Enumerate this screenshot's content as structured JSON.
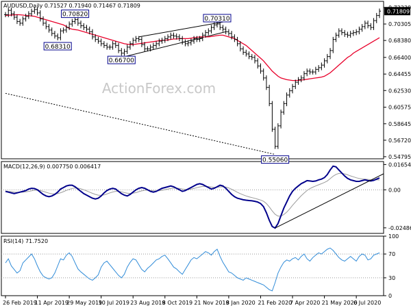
{
  "chart_data": [
    {
      "type": "candlestick",
      "symbol_header": "AUDUSD,Daily  0.71527 0.71940 0.71467 0.71809",
      "watermark": "ActionForex.com",
      "ylim": [
        0.5455,
        0.7295
      ],
      "y_ticks": [
        "0.72230",
        "0.70305",
        "0.68380",
        "0.66400",
        "0.64455",
        "0.62530",
        "0.60575",
        "0.58645",
        "0.56720",
        "0.54795"
      ],
      "last_price": "0.71809",
      "close_series": [
        0.714,
        0.719,
        0.715,
        0.711,
        0.706,
        0.704,
        0.709,
        0.712,
        0.715,
        0.718,
        0.72,
        0.716,
        0.709,
        0.704,
        0.7,
        0.696,
        0.692,
        0.689,
        0.687,
        0.695,
        0.696,
        0.699,
        0.703,
        0.706,
        0.7082,
        0.704,
        0.701,
        0.699,
        0.697,
        0.694,
        0.688,
        0.685,
        0.683,
        0.68,
        0.678,
        0.676,
        0.676,
        0.68,
        0.678,
        0.672,
        0.669,
        0.671,
        0.676,
        0.68,
        0.684,
        0.686,
        0.685,
        0.679,
        0.674,
        0.674,
        0.676,
        0.678,
        0.68,
        0.683,
        0.684,
        0.686,
        0.688,
        0.69,
        0.689,
        0.688,
        0.686,
        0.682,
        0.68,
        0.681,
        0.683,
        0.686,
        0.685,
        0.686,
        0.69,
        0.693,
        0.695,
        0.699,
        0.702,
        0.7031,
        0.699,
        0.697,
        0.694,
        0.692,
        0.688,
        0.685,
        0.68,
        0.674,
        0.67,
        0.668,
        0.665,
        0.664,
        0.66,
        0.654,
        0.648,
        0.64,
        0.629,
        0.61,
        0.58,
        0.56,
        0.584,
        0.6,
        0.61,
        0.62,
        0.625,
        0.63,
        0.635,
        0.638,
        0.64,
        0.645,
        0.648,
        0.647,
        0.647,
        0.65,
        0.652,
        0.655,
        0.66,
        0.665,
        0.672,
        0.685,
        0.69,
        0.695,
        0.693,
        0.691,
        0.69,
        0.692,
        0.693,
        0.694,
        0.697,
        0.7,
        0.704,
        0.701,
        0.699,
        0.707,
        0.713,
        0.7181
      ],
      "sma_series": [
        0.713,
        0.7133,
        0.7135,
        0.7137,
        0.714,
        0.7138,
        0.7135,
        0.713,
        0.7128,
        0.7125,
        0.712,
        0.711,
        0.71,
        0.709,
        0.708,
        0.707,
        0.706,
        0.705,
        0.704,
        0.703,
        0.702,
        0.7,
        0.698,
        0.697,
        0.6965,
        0.696,
        0.695,
        0.694,
        0.693,
        0.692,
        0.691,
        0.69,
        0.689,
        0.688,
        0.687,
        0.686,
        0.685,
        0.684,
        0.683,
        0.682,
        0.681,
        0.68,
        0.6795,
        0.679,
        0.679,
        0.6795,
        0.68,
        0.6805,
        0.681,
        0.6815,
        0.682,
        0.6825,
        0.683,
        0.6835,
        0.684,
        0.684,
        0.6845,
        0.685,
        0.6855,
        0.6855,
        0.686,
        0.686,
        0.686,
        0.686,
        0.6865,
        0.687,
        0.6875,
        0.688,
        0.688,
        0.688,
        0.688,
        0.6885,
        0.689,
        0.6895,
        0.69,
        0.69,
        0.689,
        0.688,
        0.687,
        0.686,
        0.684,
        0.682,
        0.68,
        0.678,
        0.675,
        0.672,
        0.669,
        0.666,
        0.663,
        0.66,
        0.656,
        0.652,
        0.648,
        0.645,
        0.642,
        0.64,
        0.639,
        0.638,
        0.6375,
        0.637,
        0.637,
        0.6372,
        0.6375,
        0.638,
        0.6385,
        0.639,
        0.6395,
        0.64,
        0.6405,
        0.641,
        0.642,
        0.644,
        0.646,
        0.649,
        0.652,
        0.655,
        0.658,
        0.661,
        0.664,
        0.666,
        0.669,
        0.671,
        0.673,
        0.675,
        0.677,
        0.679,
        0.681,
        0.683,
        0.685,
        0.687
      ],
      "price_labels": [
        {
          "text": "0.70820",
          "index": 24,
          "value": 0.7082,
          "side": "above"
        },
        {
          "text": "0.68310",
          "index": 18,
          "value": 0.6831,
          "side": "below"
        },
        {
          "text": "0.66700",
          "index": 40,
          "value": 0.667,
          "side": "below"
        },
        {
          "text": "0.70310",
          "index": 73,
          "value": 0.7031,
          "side": "above"
        },
        {
          "text": "0.55060",
          "index": 93,
          "value": 0.5506,
          "side": "below"
        }
      ],
      "trendlines": [
        {
          "from": [
            0,
            0.622
          ],
          "to": [
            93,
            0.5506
          ],
          "style": "dotted"
        },
        {
          "from": [
            46,
            0.688
          ],
          "to": [
            76,
            0.706
          ],
          "style": "solid"
        },
        {
          "from": [
            40,
            0.664
          ],
          "to": [
            76,
            0.694
          ],
          "style": "solid"
        }
      ]
    },
    {
      "type": "line",
      "label": "MACD(12,26,9) 0.007750 0.006417",
      "ylim": [
        -0.0285,
        0.0185
      ],
      "y_ticks": [
        "0.01654",
        "0.00",
        "-0.02486"
      ],
      "macd_series": [
        -0.001,
        -0.0015,
        -0.002,
        -0.0025,
        -0.002,
        -0.0015,
        -0.001,
        -0.0005,
        0.0005,
        0.001,
        0.0008,
        0.0,
        -0.0015,
        -0.003,
        -0.004,
        -0.0045,
        -0.004,
        -0.003,
        -0.0015,
        0.0005,
        0.0015,
        0.0025,
        0.003,
        0.003,
        0.002,
        0.0005,
        -0.001,
        -0.0025,
        -0.0035,
        -0.0045,
        -0.0055,
        -0.006,
        -0.0055,
        -0.004,
        -0.002,
        -0.0005,
        0.0005,
        0.001,
        0.0005,
        -0.001,
        -0.0025,
        -0.0035,
        -0.004,
        -0.003,
        -0.0015,
        0.0,
        0.001,
        0.0015,
        0.001,
        0.0,
        -0.001,
        -0.0015,
        -0.001,
        0.0,
        0.001,
        0.0015,
        0.002,
        0.0025,
        0.002,
        0.001,
        0.0,
        -0.001,
        -0.0005,
        0.0005,
        0.0015,
        0.0025,
        0.0035,
        0.004,
        0.0035,
        0.0025,
        0.0015,
        0.0005,
        0.001,
        0.002,
        0.003,
        0.0025,
        0.001,
        -0.001,
        -0.003,
        -0.0045,
        -0.0055,
        -0.006,
        -0.0065,
        -0.0068,
        -0.007,
        -0.0072,
        -0.0075,
        -0.008,
        -0.009,
        -0.011,
        -0.015,
        -0.02,
        -0.024,
        -0.025,
        -0.022,
        -0.017,
        -0.012,
        -0.008,
        -0.004,
        -0.001,
        0.001,
        0.0025,
        0.004,
        0.005,
        0.006,
        0.0058,
        0.0055,
        0.0058,
        0.0065,
        0.007,
        0.008,
        0.01,
        0.013,
        0.0155,
        0.015,
        0.013,
        0.011,
        0.009,
        0.0075,
        0.0065,
        0.006,
        0.0055,
        0.0055,
        0.006,
        0.0065,
        0.006,
        0.0058,
        0.0062,
        0.007,
        0.0078
      ],
      "signal_series": [
        -0.0008,
        -0.001,
        -0.0012,
        -0.0015,
        -0.0016,
        -0.0016,
        -0.0015,
        -0.0013,
        -0.001,
        -0.0006,
        -0.0003,
        -0.0002,
        -0.0005,
        -0.001,
        -0.0016,
        -0.0022,
        -0.0026,
        -0.0027,
        -0.0025,
        -0.0019,
        -0.0012,
        -0.0004,
        0.0003,
        0.0009,
        0.0012,
        0.0011,
        0.0007,
        0.0,
        -0.0007,
        -0.0015,
        -0.0023,
        -0.003,
        -0.0035,
        -0.0036,
        -0.0033,
        -0.0027,
        -0.002,
        -0.0014,
        -0.001,
        -0.001,
        -0.0013,
        -0.0018,
        -0.0022,
        -0.0024,
        -0.0022,
        -0.0018,
        -0.0012,
        -0.0007,
        -0.0003,
        -0.0002,
        -0.0004,
        -0.0006,
        -0.0007,
        -0.0006,
        -0.0003,
        0.0001,
        0.0005,
        0.0009,
        0.0011,
        0.0011,
        0.0009,
        0.0005,
        0.0003,
        0.0003,
        0.0005,
        0.0009,
        0.0014,
        0.0019,
        0.0022,
        0.0023,
        0.0021,
        0.0018,
        0.0016,
        0.0017,
        0.0019,
        0.002,
        0.0018,
        0.0012,
        0.0004,
        -0.0006,
        -0.0016,
        -0.0025,
        -0.0033,
        -0.004,
        -0.0046,
        -0.0051,
        -0.0056,
        -0.0061,
        -0.0067,
        -0.0075,
        -0.009,
        -0.0112,
        -0.0138,
        -0.016,
        -0.0172,
        -0.0172,
        -0.0162,
        -0.0146,
        -0.0125,
        -0.0102,
        -0.008,
        -0.0059,
        -0.0039,
        -0.0021,
        -0.0005,
        0.0008,
        0.0017,
        0.0025,
        0.0033,
        0.004,
        0.0048,
        0.0058,
        0.0073,
        0.0089,
        0.0101,
        0.0107,
        0.0108,
        0.0104,
        0.0098,
        0.0091,
        0.0085,
        0.0079,
        0.0074,
        0.0071,
        0.007,
        0.0068,
        0.0066,
        0.0065,
        0.0066,
        0.0064
      ],
      "trendline": {
        "from": [
          93,
          -0.025
        ],
        "to": [
          129,
          0.009
        ]
      }
    },
    {
      "type": "line",
      "label": "RSI(14) 71.7520",
      "ylim": [
        0,
        100
      ],
      "y_ticks": [
        "100",
        "70",
        "30",
        "0"
      ],
      "levels": [
        70,
        30
      ],
      "rsi_series": [
        55,
        62,
        50,
        44,
        38,
        42,
        55,
        60,
        65,
        70,
        62,
        50,
        40,
        33,
        30,
        28,
        30,
        38,
        50,
        62,
        60,
        68,
        72,
        66,
        55,
        45,
        40,
        36,
        32,
        28,
        26,
        30,
        35,
        48,
        55,
        58,
        52,
        46,
        40,
        34,
        30,
        36,
        48,
        56,
        62,
        60,
        52,
        44,
        40,
        46,
        50,
        55,
        60,
        62,
        66,
        68,
        62,
        55,
        48,
        45,
        40,
        36,
        44,
        52,
        60,
        64,
        62,
        66,
        70,
        74,
        72,
        68,
        74,
        78,
        66,
        56,
        48,
        40,
        38,
        34,
        30,
        28,
        26,
        30,
        28,
        26,
        24,
        22,
        20,
        18,
        14,
        10,
        8,
        22,
        38,
        48,
        56,
        60,
        58,
        62,
        64,
        60,
        66,
        70,
        62,
        58,
        64,
        68,
        72,
        70,
        74,
        78,
        80,
        76,
        70,
        64,
        60,
        58,
        62,
        66,
        62,
        58,
        66,
        70,
        68,
        60,
        62,
        68,
        70,
        72
      ]
    }
  ],
  "x_axis_labels": [
    "26 Feb 2019",
    "11 Apr 2019",
    "29 May 2019",
    "10 Jul 2019",
    "23 Aug 2019",
    "8 Oct 2019",
    "21 Nov 2019",
    "8 Jan 2020",
    "21 Feb 2020",
    "7 Apr 2020",
    "21 May 2020",
    "6 Jul 2020"
  ],
  "colors": {
    "candle": "#000000",
    "sma": "#e8002a",
    "macd": "#00008b",
    "signal": "#9a9a9a",
    "rsi": "#2f8bd8",
    "label_box_border": "#00008b",
    "watermark": "#c8c8c8"
  }
}
